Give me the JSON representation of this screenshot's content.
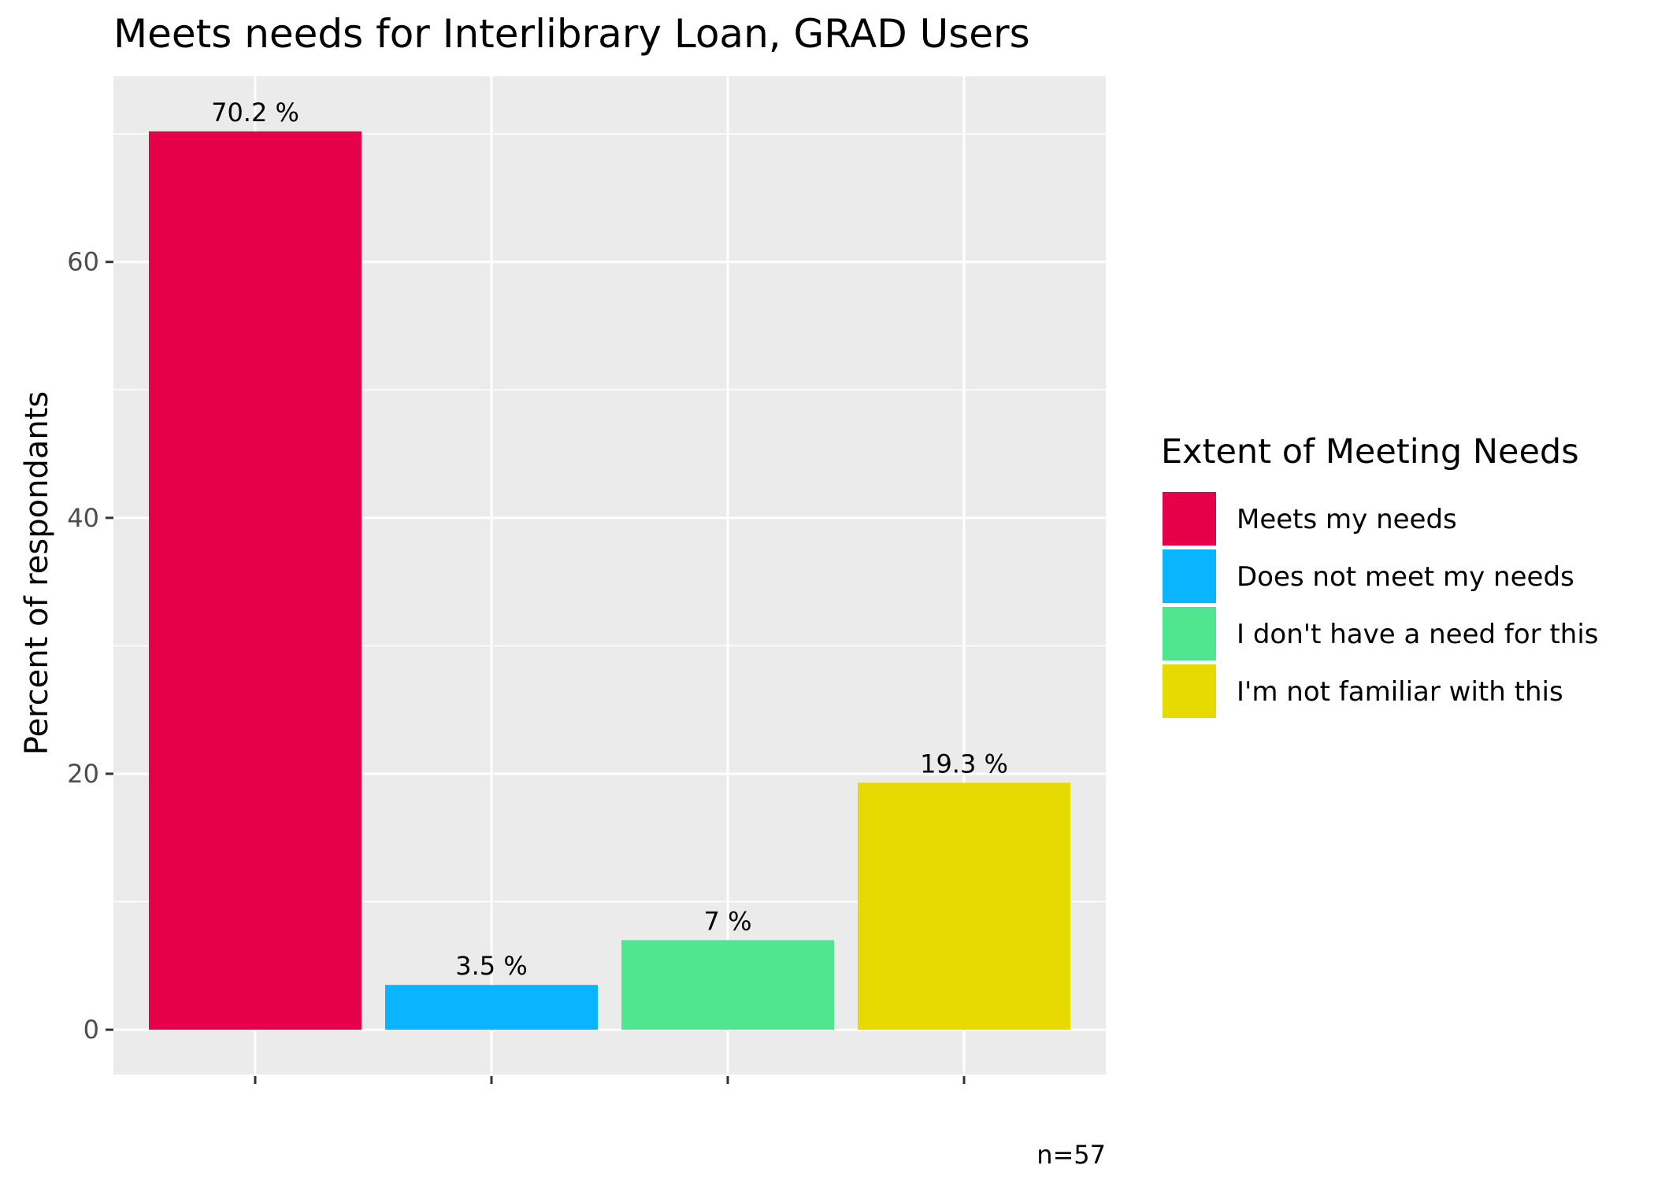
{
  "chart_data": {
    "type": "bar",
    "title": "Meets needs for Interlibrary Loan, GRAD Users",
    "xlabel": "",
    "ylabel": "Percent of respondants",
    "ylim": [
      -3.5,
      74.5
    ],
    "yticks": [
      0,
      20,
      40,
      60
    ],
    "grid": true,
    "categories": [
      "Meets my needs",
      "Does not meet my needs",
      "I don't have a need for this",
      "I'm not familiar with this"
    ],
    "values": [
      70.2,
      3.5,
      7,
      19.3
    ],
    "data_labels": [
      "70.2 %",
      "3.5 %",
      "7 %",
      "19.3 %"
    ],
    "colors": [
      "#E6004A",
      "#0AB4FF",
      "#50E68F",
      "#E6DA00"
    ],
    "legend": {
      "title": "Extent of Meeting Needs",
      "position": "right",
      "entries": [
        "Meets my needs",
        "Does not meet my needs",
        "I don't have a need for this",
        "I'm not familiar with this"
      ]
    },
    "caption": "n=57",
    "panel_color": "#EBEBEB",
    "grid_color": "#FFFFFF"
  }
}
